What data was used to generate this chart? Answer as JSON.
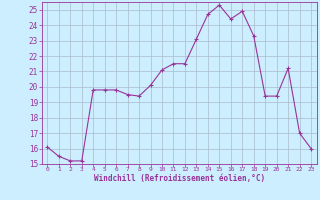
{
  "x": [
    0,
    1,
    2,
    3,
    4,
    5,
    6,
    7,
    8,
    9,
    10,
    11,
    12,
    13,
    14,
    15,
    16,
    17,
    18,
    19,
    20,
    21,
    22,
    23
  ],
  "y": [
    16.1,
    15.5,
    15.2,
    15.2,
    19.8,
    19.8,
    19.8,
    19.5,
    19.4,
    20.1,
    21.1,
    21.5,
    21.5,
    23.1,
    24.7,
    25.3,
    24.4,
    24.9,
    23.3,
    19.4,
    19.4,
    21.2,
    17.0,
    16.0
  ],
  "line_color": "#993399",
  "marker": "+",
  "marker_size": 3,
  "bg_color": "#cceeff",
  "grid_color": "#aabbcc",
  "xlabel": "Windchill (Refroidissement éolien,°C)",
  "xlabel_color": "#993399",
  "tick_color": "#993399",
  "ylim": [
    15,
    25.5
  ],
  "xlim": [
    -0.5,
    23.5
  ],
  "yticks": [
    15,
    16,
    17,
    18,
    19,
    20,
    21,
    22,
    23,
    24,
    25
  ],
  "xticks": [
    0,
    1,
    2,
    3,
    4,
    5,
    6,
    7,
    8,
    9,
    10,
    11,
    12,
    13,
    14,
    15,
    16,
    17,
    18,
    19,
    20,
    21,
    22,
    23
  ],
  "font_family": "monospace"
}
